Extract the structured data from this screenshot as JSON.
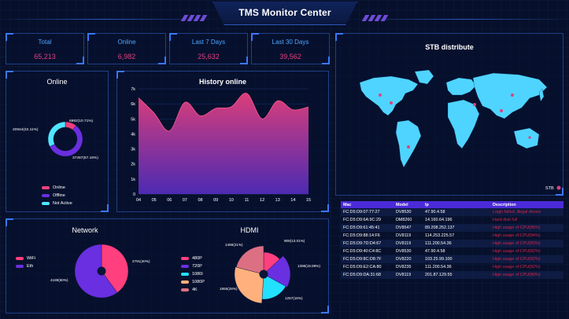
{
  "header": {
    "title": "TMS Monitor Center"
  },
  "stats": [
    {
      "label": "Total",
      "value": "65,213"
    },
    {
      "label": "Online",
      "value": "6,982"
    },
    {
      "label": "Last 7 Days",
      "value": "25,632"
    },
    {
      "label": "Last 30 Days",
      "value": "39,562"
    }
  ],
  "online_panel": {
    "title": "Online",
    "labels": [
      "6982(10.71%)",
      "37287(57.18%)",
      "20944(32.11%)"
    ],
    "legend": [
      "Online",
      "Offline",
      "Not Active"
    ]
  },
  "history_panel": {
    "title": "History online"
  },
  "stb_panel": {
    "title": "STB distribute",
    "legend": "STB"
  },
  "network_panel": {
    "title": "Network",
    "labels": [
      "2791(40%)",
      "4189(60%)"
    ],
    "legend": [
      "WiFi",
      "Eth"
    ]
  },
  "hdmi_panel": {
    "title": "HDMI",
    "labels": [
      "908(13.01%)",
      "1396(19.99%)",
      "1257(18%)",
      "1955(28%)",
      "1466(21%)"
    ],
    "legend": [
      "480P",
      "720P",
      "1080I",
      "1080P",
      "4K"
    ]
  },
  "colors": {
    "online": "#ef3f7e",
    "offline": "#6a2fe0",
    "not_active": "#4fe6ff",
    "wifi": "#ff3f7e",
    "eth": "#6a2fe0",
    "p480": "#ff3f7e",
    "p720": "#6a2fe0",
    "p1080i": "#22e0ff",
    "p1080p": "#ffb07c",
    "p4k": "#dc7082"
  },
  "table": {
    "headers": [
      "Mac",
      "Model",
      "Ip",
      "Description"
    ],
    "rows": [
      [
        "FC:D5:D9:07:77:27",
        "DV8530",
        "47.90.4.58",
        "Login failed, illegal device"
      ],
      [
        "FC:D5:D9:6A:9C:29",
        "DM8260",
        "14.160.64.196",
        "Hard disk full"
      ],
      [
        "FC:D5:D9:61:45:41",
        "DV8547",
        "89.208.252.137",
        "High usage of CPU(85%)"
      ],
      [
        "FC:D5:D9:88:14:F6",
        "DV8119",
        "114.253.225.57",
        "High usage of CPU(84%)"
      ],
      [
        "FC:D5:D9:7D:D4:67",
        "DV8119",
        "111.200.54.36",
        "High usage of CPU(83%)"
      ],
      [
        "FC:D5:D9:40:C4:8C",
        "DV8530",
        "47.90.4.58",
        "High usage of CPU(82%)"
      ],
      [
        "FC:D5:D9:8C:D8:7F",
        "DV8220",
        "103.25.99.100",
        "High usage of CPU(82%)"
      ],
      [
        "FC:D5:D9:E2:CA:80",
        "DV8235",
        "111.200.54.36",
        "High usage of CPU(82%)"
      ],
      [
        "FC:D5:D9:DA:31:68",
        "DV8119",
        "201.87.129.55",
        "High usage of CPU(80%)"
      ]
    ]
  },
  "chart_data": [
    {
      "type": "pie",
      "title": "Online",
      "labels": [
        "Online",
        "Offline",
        "Not Active"
      ],
      "values": [
        6982,
        37287,
        20944
      ]
    },
    {
      "type": "area",
      "title": "History online",
      "x": [
        "04",
        "05",
        "06",
        "07",
        "08",
        "09",
        "10",
        "11",
        "12",
        "13",
        "14",
        "15"
      ],
      "values": [
        6400,
        5400,
        4200,
        6100,
        5200,
        5700,
        5800,
        6700,
        5000,
        6200,
        5600,
        5800
      ],
      "yticks": [
        "0",
        "1k",
        "2k",
        "3k",
        "4k",
        "5k",
        "6k",
        "7k"
      ],
      "ylim": [
        0,
        7000
      ]
    },
    {
      "type": "pie",
      "title": "Network",
      "labels": [
        "WiFi",
        "Eth"
      ],
      "values": [
        2791,
        4189
      ]
    },
    {
      "type": "pie",
      "title": "HDMI",
      "labels": [
        "480P",
        "720P",
        "1080I",
        "1080P",
        "4K"
      ],
      "values": [
        908,
        1396,
        1257,
        1955,
        1466
      ]
    }
  ]
}
